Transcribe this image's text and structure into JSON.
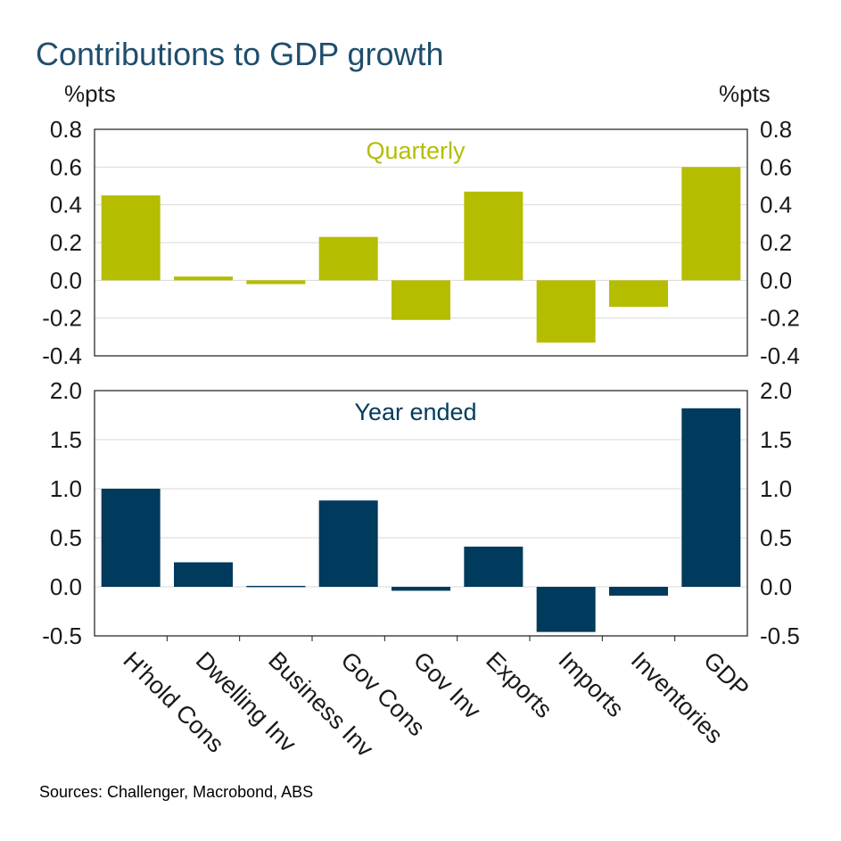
{
  "title": "Contributions to GDP growth",
  "unit_left": "%pts",
  "unit_right": "%pts",
  "source": "Sources: Challenger, Macrobond, ABS",
  "colors": {
    "quarterly": "#b5bd00",
    "year_ended": "#003a5c",
    "title": "#1f4e6e"
  },
  "chart_data": [
    {
      "type": "bar",
      "title": "Quarterly",
      "categories": [
        "H'hold Cons",
        "Dwelling Inv",
        "Business Inv",
        "Gov Cons",
        "Gov Inv",
        "Exports",
        "Imports",
        "Inventories",
        "GDP"
      ],
      "values": [
        0.45,
        0.02,
        -0.02,
        0.23,
        -0.21,
        0.47,
        -0.33,
        -0.14,
        0.6
      ],
      "ylim": [
        -0.4,
        0.8
      ],
      "yticks": [
        "0.8",
        "0.6",
        "0.4",
        "0.2",
        "0.0",
        "-0.2",
        "-0.4"
      ],
      "ylabel": "%pts",
      "grid": true
    },
    {
      "type": "bar",
      "title": "Year ended",
      "categories": [
        "H'hold Cons",
        "Dwelling Inv",
        "Business Inv",
        "Gov Cons",
        "Gov Inv",
        "Exports",
        "Imports",
        "Inventories",
        "GDP"
      ],
      "values": [
        1.0,
        0.25,
        0.01,
        0.88,
        -0.04,
        0.41,
        -0.46,
        -0.09,
        1.82
      ],
      "ylim": [
        -0.5,
        2.0
      ],
      "yticks": [
        "2.0",
        "1.5",
        "1.0",
        "0.5",
        "0.0",
        "-0.5"
      ],
      "ylabel": "%pts",
      "grid": true
    }
  ]
}
